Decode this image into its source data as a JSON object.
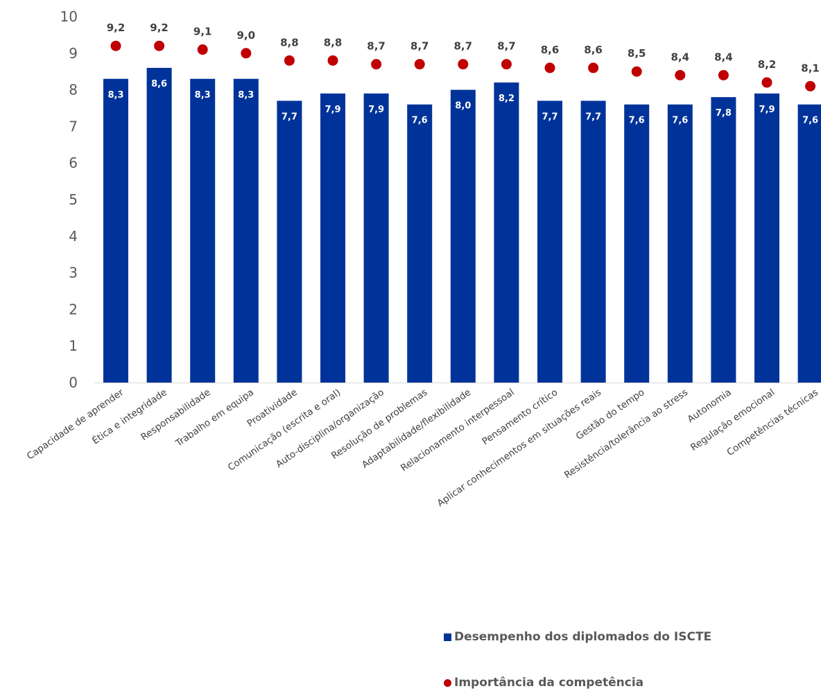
{
  "chart_data": {
    "type": "bar",
    "ylim": [
      0,
      10
    ],
    "yticks": [
      "0",
      "1",
      "2",
      "3",
      "4",
      "5",
      "6",
      "7",
      "8",
      "9",
      "10"
    ],
    "grid": false,
    "legend_position": "bottom-right",
    "categories": [
      "Capacidade de aprender",
      "Ética e integridade",
      "Responsabilidade",
      "Trabalho em equipa",
      "Proatividade",
      "Comunicação (escrita e oral)",
      "Auto-disciplina/organização",
      "Resolução de problemas",
      "Adaptabilidade/flexibilidade",
      "Relacionamento interpessoal",
      "Pensamento crítico",
      "Aplicar conhecimentos em situações reais",
      "Gestão do tempo",
      "Resistência/tolerância ao stress",
      "Autonomia",
      "Regulação emocional",
      "Competências técnicas"
    ],
    "series": [
      {
        "name": "Desempenho dos diplomados do ISCTE",
        "type": "bar",
        "color": "#003399",
        "values": [
          8.3,
          8.6,
          8.3,
          8.3,
          7.7,
          7.9,
          7.9,
          7.6,
          8.0,
          8.2,
          7.7,
          7.7,
          7.6,
          7.6,
          7.8,
          7.9,
          7.6
        ],
        "labels": [
          "8,3",
          "8,6",
          "8,3",
          "8,3",
          "7,7",
          "7,9",
          "7,9",
          "7,6",
          "8,0",
          "8,2",
          "7,7",
          "7,7",
          "7,6",
          "7,6",
          "7,8",
          "7,9",
          "7,6"
        ]
      },
      {
        "name": "Importância da competência",
        "type": "scatter",
        "color": "#c00000",
        "values": [
          9.2,
          9.2,
          9.1,
          9.0,
          8.8,
          8.8,
          8.7,
          8.7,
          8.7,
          8.7,
          8.6,
          8.6,
          8.5,
          8.4,
          8.4,
          8.2,
          8.1
        ],
        "labels": [
          "9,2",
          "9,2",
          "9,1",
          "9,0",
          "8,8",
          "8,8",
          "8,7",
          "8,7",
          "8,7",
          "8,7",
          "8,6",
          "8,6",
          "8,5",
          "8,4",
          "8,4",
          "8,2",
          "8,1"
        ]
      }
    ]
  },
  "legend": {
    "bar_label": "Desempenho dos diplomados do ISCTE",
    "dot_label": "Importância da competência"
  }
}
